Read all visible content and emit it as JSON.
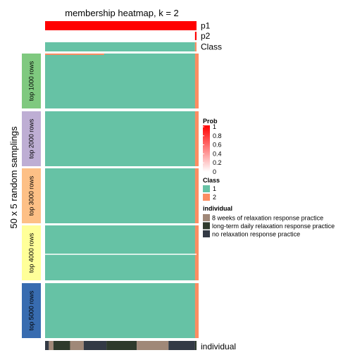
{
  "chart_data": {
    "type": "heatmap",
    "title": "membership heatmap, k = 2",
    "ylabel": "50 x 5 random samplings",
    "annotation_rows": [
      {
        "label": "p1",
        "values_fraction_at_prob": [
          [
            0.0,
            1.0
          ]
        ]
      },
      {
        "label": "p2",
        "values_fraction_at_prob": [
          [
            0.0,
            0.0
          ],
          [
            0.99,
            1.0
          ]
        ]
      },
      {
        "label": "Class",
        "values_fraction_at_class": [
          [
            0.0,
            1
          ],
          [
            0.99,
            2
          ]
        ]
      }
    ],
    "groups": [
      {
        "label": "top 1000 rows",
        "color": "#7FC97F",
        "highlight": {
          "class": 2,
          "row_fraction": 0.02,
          "col_fraction": 0.39
        }
      },
      {
        "label": "top 2000 rows",
        "color": "#BEAED4"
      },
      {
        "label": "top 3000 rows",
        "color": "#FDC086"
      },
      {
        "label": "top 4000 rows",
        "color": "#FFFF99"
      },
      {
        "label": "top 5000 rows",
        "color": "#386CB0"
      }
    ],
    "matrix_class": 1,
    "last_column_class": 2,
    "bottom_annotation": {
      "label": "individual",
      "segments": [
        {
          "start": 0.0,
          "end": 0.025,
          "individual": "no relaxation response practice"
        },
        {
          "start": 0.025,
          "end": 0.055,
          "individual": "8 weeks of relaxation response practice"
        },
        {
          "start": 0.055,
          "end": 0.165,
          "individual": "long-term daily relaxation response practice"
        },
        {
          "start": 0.165,
          "end": 0.255,
          "individual": "8 weeks of relaxation response practice"
        },
        {
          "start": 0.255,
          "end": 0.405,
          "individual": "no relaxation response practice"
        },
        {
          "start": 0.405,
          "end": 0.605,
          "individual": "long-term daily relaxation response practice"
        },
        {
          "start": 0.605,
          "end": 0.815,
          "individual": "8 weeks of relaxation response practice"
        },
        {
          "start": 0.815,
          "end": 0.99,
          "individual": "no relaxation response practice"
        },
        {
          "start": 0.99,
          "end": 1.0,
          "individual": "long-term daily relaxation response practice"
        }
      ]
    },
    "legends": {
      "prob": {
        "title": "Prob",
        "ticks": [
          "1",
          "0.8",
          "0.6",
          "0.4",
          "0.2",
          "0"
        ],
        "color_high": "#FF0000",
        "color_low": "#FFFFFF"
      },
      "class": {
        "title": "Class",
        "items": [
          {
            "label": "1",
            "color": "#66C2A5"
          },
          {
            "label": "2",
            "color": "#FC8D62"
          }
        ]
      },
      "individual": {
        "title": "individual",
        "items": [
          {
            "label": "8 weeks of relaxation response practice",
            "color": "#A08878"
          },
          {
            "label": "long-term daily relaxation response practice",
            "color": "#2E3A2C"
          },
          {
            "label": "no relaxation response practice",
            "color": "#333A45"
          }
        ]
      }
    }
  }
}
